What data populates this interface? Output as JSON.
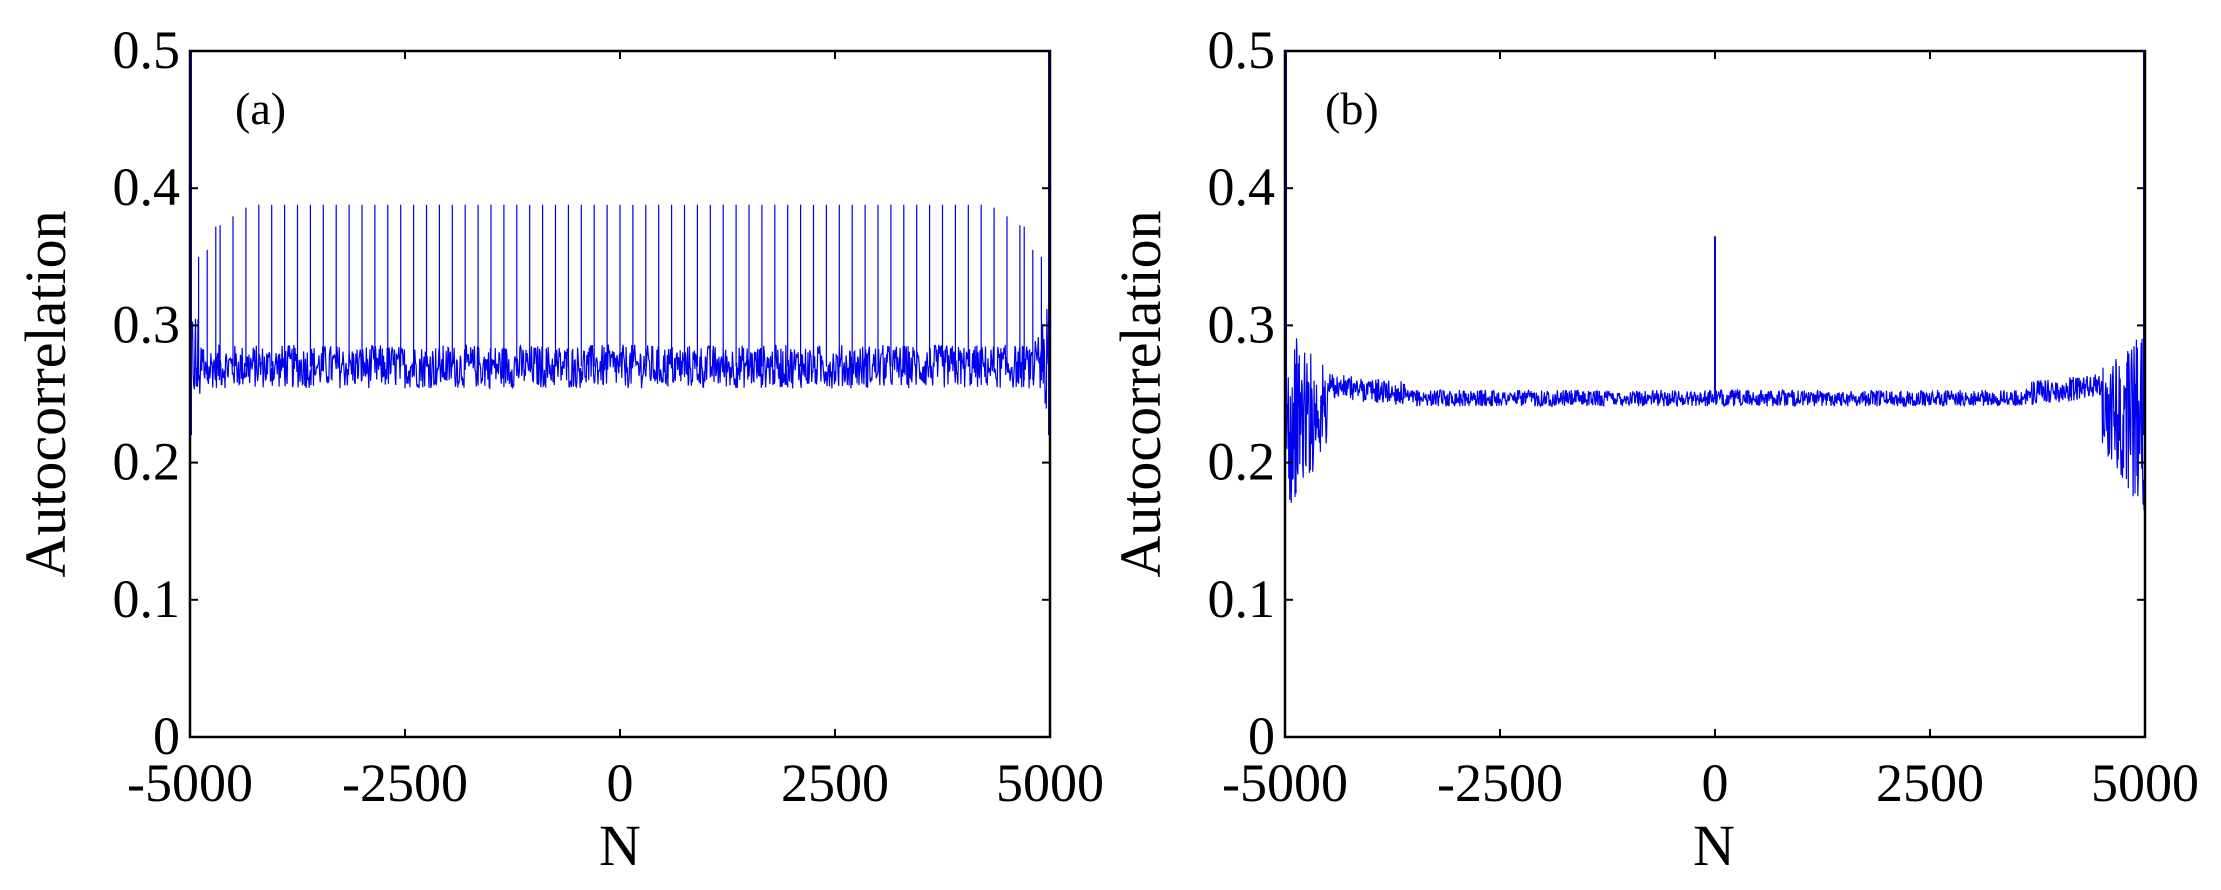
{
  "chart_data": [
    {
      "type": "line",
      "panel_label": "(a)",
      "xlabel": "N",
      "ylabel": "Autocorrelation",
      "xlim": [
        -5000,
        5000
      ],
      "ylim": [
        0,
        0.5
      ],
      "xticks": [
        -5000,
        -2500,
        0,
        2500,
        5000
      ],
      "xtick_labels": [
        "-5000",
        "-2500",
        "0",
        "2500",
        "5000"
      ],
      "yticks": [
        0,
        0.1,
        0.2,
        0.3,
        0.4,
        0.5
      ],
      "ytick_labels": [
        "0",
        "0.1",
        "0.2",
        "0.3",
        "0.4",
        "0.5"
      ],
      "line_color": "#0000ee",
      "series": [
        {
          "name": "autocorrelation",
          "description_stats": {
            "baseline_mean": 0.27,
            "baseline_band": [
              0.255,
              0.285
            ],
            "peak_height": 0.385,
            "peak_spacing": 150,
            "edge_peak": 0.5
          },
          "x": [
            -5000,
            -4950,
            -4900,
            -4850,
            -4800,
            -4750,
            -4700,
            -4650,
            -4600,
            -4550,
            -4500,
            -4400,
            -4200,
            -4000,
            -3500,
            -3000,
            -2500,
            -2000,
            -1500,
            -1000,
            -500,
            0,
            500,
            1000,
            1500,
            2000,
            2500,
            3000,
            3500,
            4000,
            4200,
            4400,
            4500,
            4550,
            4600,
            4650,
            4700,
            4750,
            4800,
            4850,
            4900,
            4950,
            5000
          ],
          "y": [
            0.5,
            0.22,
            0.34,
            0.23,
            0.35,
            0.26,
            0.37,
            0.26,
            0.38,
            0.27,
            0.385,
            0.386,
            0.387,
            0.388,
            0.388,
            0.388,
            0.389,
            0.388,
            0.388,
            0.388,
            0.389,
            0.39,
            0.389,
            0.388,
            0.388,
            0.388,
            0.389,
            0.388,
            0.388,
            0.388,
            0.387,
            0.386,
            0.385,
            0.27,
            0.38,
            0.26,
            0.37,
            0.26,
            0.35,
            0.23,
            0.34,
            0.22,
            0.5
          ]
        }
      ]
    },
    {
      "type": "line",
      "panel_label": "(b)",
      "xlabel": "N",
      "ylabel": "Autocorrelation",
      "xlim": [
        -5000,
        5000
      ],
      "ylim": [
        0,
        0.5
      ],
      "xticks": [
        -5000,
        -2500,
        0,
        2500,
        5000
      ],
      "xtick_labels": [
        "-5000",
        "-2500",
        "0",
        "2500",
        "5000"
      ],
      "yticks": [
        0,
        0.1,
        0.2,
        0.3,
        0.4,
        0.5
      ],
      "ytick_labels": [
        "0",
        "0.1",
        "0.2",
        "0.3",
        "0.4",
        "0.5"
      ],
      "line_color": "#0000ee",
      "series": [
        {
          "name": "autocorrelation",
          "x": [
            -5000,
            -4900,
            -4800,
            -4700,
            -4600,
            -4500,
            -4400,
            -4200,
            -4000,
            -3800,
            -3500,
            -3000,
            -2500,
            -2000,
            -1500,
            -1000,
            -500,
            -20,
            0,
            20,
            500,
            1000,
            1500,
            2000,
            2500,
            3000,
            3500,
            3800,
            4000,
            4200,
            4400,
            4500,
            4600,
            4700,
            4800,
            4900,
            5000
          ],
          "y": [
            0.5,
            0.23,
            0.21,
            0.225,
            0.235,
            0.24,
            0.245,
            0.252,
            0.255,
            0.25,
            0.245,
            0.245,
            0.246,
            0.247,
            0.248,
            0.248,
            0.247,
            0.248,
            0.365,
            0.248,
            0.247,
            0.248,
            0.248,
            0.247,
            0.246,
            0.245,
            0.245,
            0.25,
            0.255,
            0.252,
            0.245,
            0.24,
            0.235,
            0.225,
            0.21,
            0.23,
            0.5
          ]
        }
      ]
    }
  ]
}
